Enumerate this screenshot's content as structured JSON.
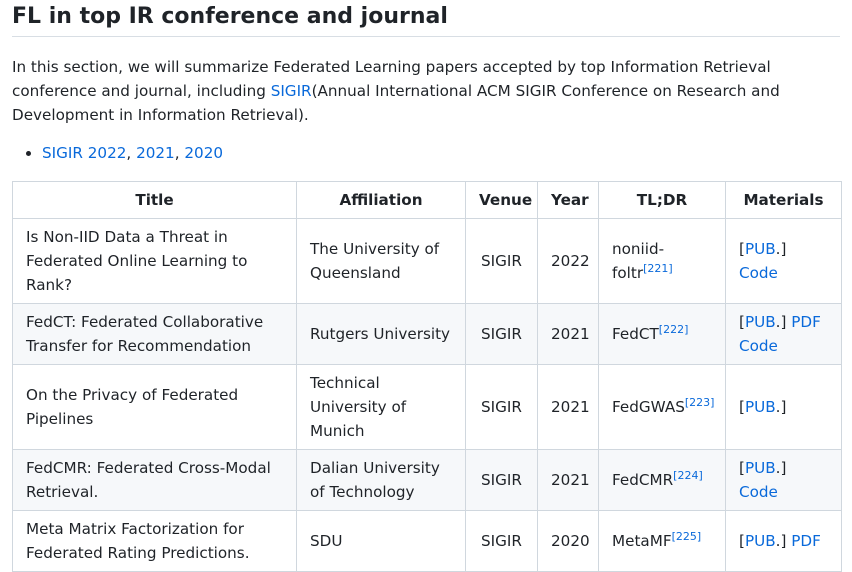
{
  "heading": "FL in top IR conference and journal",
  "intro": {
    "before": "In this section, we will summarize Federated Learning papers accepted by top Information Retrieval conference and journal, including ",
    "link": "SIGIR",
    "after": "(Annual International ACM SIGIR Conference on Research and Development in Information Retrieval)."
  },
  "bullet": {
    "label": "SIGIR 2022",
    "sep1": ", ",
    "y2021": "2021",
    "sep2": ", ",
    "y2020": "2020"
  },
  "table": {
    "headers": [
      "Title",
      "Affiliation",
      "Venue",
      "Year",
      "TL;DR",
      "Materials"
    ],
    "rows": [
      {
        "title": "Is Non-IID Data a Threat in Federated Online Learning to Rank?",
        "affiliation": "The University of Queensland",
        "venue": "SIGIR",
        "year": "2022",
        "tldr": "noniid-foltr",
        "ref": "[221]",
        "pub_open": "[",
        "pub": "PUB",
        "pub_close": ".]",
        "pdf": "",
        "code": "Code"
      },
      {
        "title": "FedCT: Federated Collaborative Transfer for Recommendation",
        "affiliation": "Rutgers University",
        "venue": "SIGIR",
        "year": "2021",
        "tldr": "FedCT",
        "ref": "[222]",
        "pub_open": "[",
        "pub": "PUB",
        "pub_close": ".]",
        "pdf": "PDF",
        "code": "Code"
      },
      {
        "title": "On the Privacy of Federated Pipelines",
        "affiliation": "Technical University of Munich",
        "venue": "SIGIR",
        "year": "2021",
        "tldr": "FedGWAS",
        "ref": "[223]",
        "pub_open": "[",
        "pub": "PUB",
        "pub_close": ".]",
        "pdf": "",
        "code": ""
      },
      {
        "title": "FedCMR: Federated Cross-Modal Retrieval.",
        "affiliation": "Dalian University of Technology",
        "venue": "SIGIR",
        "year": "2021",
        "tldr": "FedCMR",
        "ref": "[224]",
        "pub_open": "[",
        "pub": "PUB",
        "pub_close": ".]",
        "pdf": "",
        "code": "Code"
      },
      {
        "title": "Meta Matrix Factorization for Federated Rating Predictions.",
        "affiliation": "SDU",
        "venue": "SIGIR",
        "year": "2020",
        "tldr": "MetaMF",
        "ref": "[225]",
        "pub_open": "[",
        "pub": "PUB",
        "pub_close": ".]",
        "pdf": "PDF",
        "code": ""
      }
    ]
  }
}
